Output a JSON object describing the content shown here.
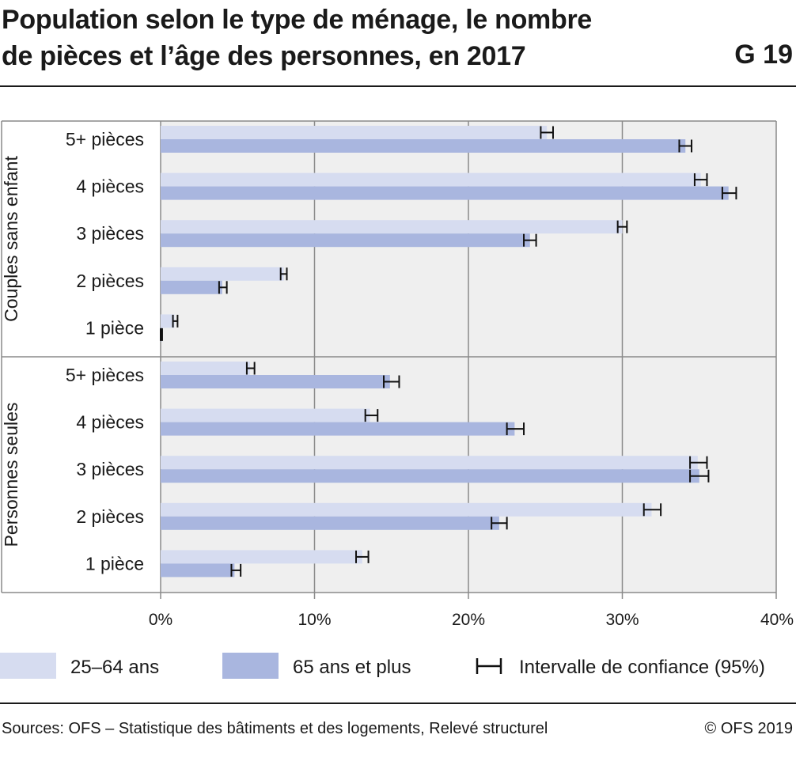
{
  "header": {
    "title_line1": "Population selon le type de ménage, le nombre",
    "title_line2": "de pièces et l’âge des personnes, en 2017",
    "figure_number": "G 19"
  },
  "footer": {
    "source": "Sources: OFS – Statistique des bâtiments et des logements, Relevé structurel",
    "copyright": "© OFS 2019"
  },
  "colors": {
    "series_25_64": "#d6dcf0",
    "series_65plus": "#a9b6df",
    "plot_bg": "#efefef",
    "grid": "#8a8a8a",
    "error_bar": "#111111"
  },
  "chart_data": {
    "type": "bar",
    "orientation": "horizontal",
    "xlim": [
      0,
      40
    ],
    "x_ticks": [
      "0%",
      "10%",
      "20%",
      "30%",
      "40%"
    ],
    "grid": true,
    "legend_position": "bottom",
    "legend": [
      "25–64 ans",
      "65 ans et plus",
      "Intervalle de confiance (95%)"
    ],
    "groups": [
      {
        "name": "Couples sans enfant",
        "categories": [
          "5+ pièces",
          "4 pièces",
          "3 pièces",
          "2 pièces",
          "1 pièce"
        ],
        "series": [
          {
            "name": "25–64 ans",
            "values": [
              25.1,
              35.1,
              30.0,
              8.0,
              0.9
            ],
            "ci": [
              [
                24.7,
                25.5
              ],
              [
                34.7,
                35.5
              ],
              [
                29.7,
                30.3
              ],
              [
                7.8,
                8.2
              ],
              [
                0.8,
                1.1
              ]
            ]
          },
          {
            "name": "65 ans et plus",
            "values": [
              34.1,
              36.9,
              24.0,
              4.0,
              0.1
            ],
            "ci": [
              [
                33.7,
                34.5
              ],
              [
                36.5,
                37.4
              ],
              [
                23.6,
                24.4
              ],
              [
                3.8,
                4.3
              ],
              [
                0.0,
                0.1
              ]
            ]
          }
        ]
      },
      {
        "name": "Personnes seules",
        "categories": [
          "5+ pièces",
          "4 pièces",
          "3 pièces",
          "2 pièces",
          "1 pièce"
        ],
        "series": [
          {
            "name": "25–64 ans",
            "values": [
              5.8,
              13.6,
              34.9,
              31.9,
              13.1
            ],
            "ci": [
              [
                5.6,
                6.1
              ],
              [
                13.3,
                14.1
              ],
              [
                34.4,
                35.5
              ],
              [
                31.4,
                32.5
              ],
              [
                12.7,
                13.5
              ]
            ]
          },
          {
            "name": "65 ans et plus",
            "values": [
              14.9,
              23.0,
              35.0,
              22.0,
              4.8
            ],
            "ci": [
              [
                14.5,
                15.5
              ],
              [
                22.5,
                23.6
              ],
              [
                34.4,
                35.6
              ],
              [
                21.5,
                22.5
              ],
              [
                4.6,
                5.2
              ]
            ]
          }
        ]
      }
    ]
  }
}
